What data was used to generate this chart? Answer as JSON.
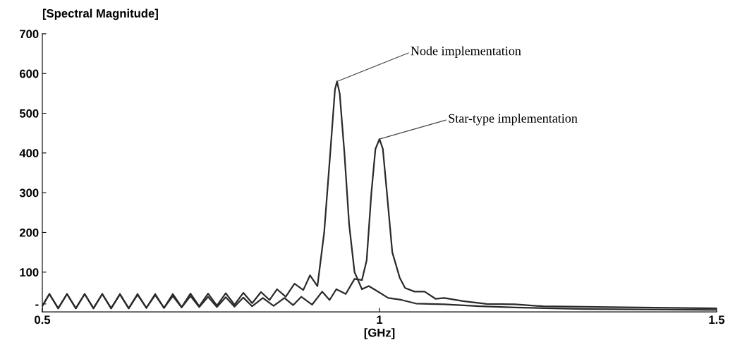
{
  "chart_data": {
    "type": "line",
    "ylabel": "[Spectral Magnitude]",
    "xlabel": "[GHz]",
    "xlim": [
      0.5,
      1.5
    ],
    "xticks": [
      0.5,
      1,
      1.5
    ],
    "ylim": [
      0,
      700
    ],
    "yticks": [
      {
        "value": 20,
        "label": "-"
      },
      100,
      200,
      300,
      400,
      500,
      600,
      700
    ],
    "grid": false,
    "legend": false,
    "marker": "none",
    "line_style": "solid",
    "annotations": [
      {
        "text": "Node implementation",
        "x": 0.937,
        "y": 580
      },
      {
        "text": "Star-type implementation",
        "x": 1.0,
        "y": 435
      }
    ],
    "series": [
      {
        "color": "#2a2a2a",
        "x": [
          0.5,
          0.5105,
          0.5235,
          0.5366,
          0.5497,
          0.5628,
          0.5758,
          0.5889,
          0.602,
          0.6151,
          0.6281,
          0.6412,
          0.6543,
          0.6674,
          0.6804,
          0.6935,
          0.7066,
          0.7197,
          0.7327,
          0.7458,
          0.7589,
          0.772,
          0.785,
          0.7981,
          0.8112,
          0.8243,
          0.837,
          0.848,
          0.861,
          0.874,
          0.887,
          0.897,
          0.908,
          0.918,
          0.927,
          0.934,
          0.937,
          0.941,
          0.948,
          0.955,
          0.963,
          0.974,
          0.984,
          0.992,
          1.013,
          1.033,
          1.054,
          1.096,
          1.149,
          1.201,
          1.305,
          1.5
        ],
        "values": [
          15,
          45,
          9,
          45,
          9,
          45,
          9,
          45,
          9,
          45,
          9,
          45,
          10,
          45,
          10,
          45,
          12,
          46,
          14,
          46,
          16,
          47,
          18,
          48,
          22,
          50,
          30,
          57,
          38,
          71,
          55,
          92,
          65,
          200,
          400,
          560,
          580,
          550,
          400,
          220,
          100,
          57,
          65,
          57,
          35,
          30,
          21,
          19,
          14,
          11,
          7,
          5
        ]
      },
      {
        "color": "#2a2a2a",
        "x": [
          0.5,
          0.5105,
          0.5235,
          0.5366,
          0.5497,
          0.5628,
          0.5758,
          0.5889,
          0.602,
          0.6151,
          0.6281,
          0.6412,
          0.6543,
          0.6674,
          0.6804,
          0.6935,
          0.7066,
          0.7197,
          0.7327,
          0.7458,
          0.7589,
          0.772,
          0.785,
          0.7981,
          0.8112,
          0.827,
          0.843,
          0.859,
          0.872,
          0.884,
          0.9,
          0.915,
          0.926,
          0.936,
          0.95,
          0.963,
          0.974,
          0.981,
          0.988,
          0.994,
          1.0,
          1.005,
          1.011,
          1.019,
          1.03,
          1.038,
          1.052,
          1.067,
          1.083,
          1.096,
          1.124,
          1.159,
          1.201,
          1.243,
          1.34,
          1.5
        ],
        "values": [
          15,
          45,
          9,
          45,
          9,
          45,
          9,
          45,
          9,
          44,
          9,
          43,
          10,
          42,
          10,
          40,
          11,
          40,
          12,
          38,
          12,
          37,
          13,
          36,
          14,
          35,
          15,
          35,
          17,
          38,
          18,
          51,
          30,
          57,
          45,
          83,
          80,
          130,
          300,
          410,
          435,
          410,
          300,
          150,
          86,
          60,
          51,
          51,
          33,
          35,
          27,
          20,
          19,
          14,
          12,
          9
        ]
      }
    ]
  }
}
